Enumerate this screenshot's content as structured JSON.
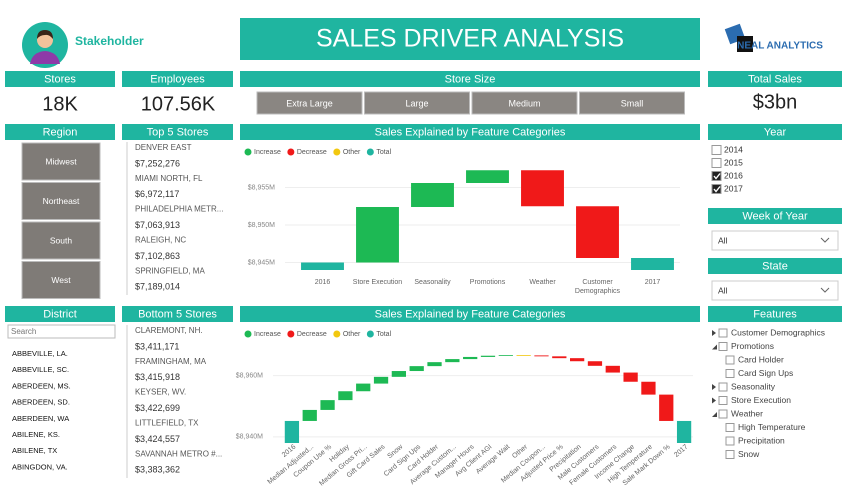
{
  "header": {
    "user": "Stakeholder",
    "title": "SALES DRIVER ANALYSIS",
    "logo": "NEAL ANALYTICS"
  },
  "cards": [
    {
      "label": "Stores",
      "value": "18K"
    },
    {
      "label": "Employees",
      "value": "107.56K"
    },
    {
      "label": "Total Sales",
      "value": "$3bn"
    }
  ],
  "store_size": {
    "label": "Store Size",
    "options": [
      "Extra Large",
      "Large",
      "Medium",
      "Small"
    ]
  },
  "region": {
    "label": "Region",
    "options": [
      "Midwest",
      "Northeast",
      "South",
      "West"
    ]
  },
  "top_stores": {
    "label": "Top 5 Stores",
    "items": [
      {
        "name": "DENVER EAST",
        "sales": "$7,252,276"
      },
      {
        "name": "MIAMI NORTH, FL",
        "sales": "$6,972,117"
      },
      {
        "name": "PHILADELPHIA METR...",
        "sales": "$7,063,913"
      },
      {
        "name": "RALEIGH, NC",
        "sales": "$7,102,863"
      },
      {
        "name": "SPRINGFIELD, MA",
        "sales": "$7,189,014"
      }
    ]
  },
  "bottom_stores": {
    "label": "Bottom 5 Stores",
    "items": [
      {
        "name": "CLAREMONT, NH.",
        "sales": "$3,411,171"
      },
      {
        "name": "FRAMINGHAM, MA",
        "sales": "$3,415,918"
      },
      {
        "name": "KEYSER, WV.",
        "sales": "$3,422,699"
      },
      {
        "name": "LITTLEFIELD, TX",
        "sales": "$3,424,557"
      },
      {
        "name": "SAVANNAH METRO #...",
        "sales": "$3,383,362"
      }
    ]
  },
  "district": {
    "label": "District",
    "search": "Search",
    "items": [
      "ABBEVILLE, LA.",
      "ABBEVILLE, SC.",
      "ABERDEEN, MS.",
      "ABERDEEN, SD.",
      "ABERDEEN, WA",
      "ABILENE, KS.",
      "ABILENE, TX",
      "ABINGDON, VA."
    ]
  },
  "year": {
    "label": "Year",
    "options": [
      {
        "label": "2014",
        "checked": false
      },
      {
        "label": "2015",
        "checked": false
      },
      {
        "label": "2016",
        "checked": true
      },
      {
        "label": "2017",
        "checked": true
      }
    ]
  },
  "week": {
    "label": "Week of Year",
    "value": "All"
  },
  "state": {
    "label": "State",
    "value": "All"
  },
  "features": {
    "label": "Features",
    "items": [
      {
        "label": "Customer Demographics",
        "expanded": false,
        "children": []
      },
      {
        "label": "Promotions",
        "expanded": true,
        "children": [
          "Card Holder",
          "Card Sign Ups"
        ]
      },
      {
        "label": "Seasonality",
        "expanded": false,
        "children": []
      },
      {
        "label": "Store Execution",
        "expanded": false,
        "children": []
      },
      {
        "label": "Weather",
        "expanded": true,
        "children": [
          "High Temperature",
          "Precipitation",
          "Snow"
        ]
      }
    ]
  },
  "chart_data": [
    {
      "type": "waterfall",
      "title": "Sales Explained by Feature Categories",
      "legend": [
        {
          "name": "Increase",
          "color": "#1db954"
        },
        {
          "name": "Decrease",
          "color": "#f01919"
        },
        {
          "name": "Other",
          "color": "#f2c80f"
        },
        {
          "name": "Total",
          "color": "#1fb5a0"
        }
      ],
      "categories": [
        "2016",
        "Store Execution",
        "Seasonality",
        "Promotions",
        "Weather",
        "Customer Demographics",
        "2017"
      ],
      "values": [
        8945.0,
        7.4,
        3.2,
        1.7,
        -4.8,
        -6.9,
        8945.6
      ],
      "colors": [
        "#1fb5a0",
        "#1db954",
        "#1db954",
        "#1db954",
        "#f01919",
        "#f01919",
        "#1fb5a0"
      ],
      "ylim": [
        8944,
        8958
      ],
      "yticks": [
        {
          "value": 8945,
          "label": "$8,945M"
        },
        {
          "value": 8950,
          "label": "$8,950M"
        },
        {
          "value": 8955,
          "label": "$8,955M"
        }
      ]
    },
    {
      "type": "waterfall",
      "title": "Sales Explained by Feature Categories",
      "legend": [
        {
          "name": "Increase",
          "color": "#1db954"
        },
        {
          "name": "Decrease",
          "color": "#f01919"
        },
        {
          "name": "Other",
          "color": "#f2c80f"
        },
        {
          "name": "Total",
          "color": "#1fb5a0"
        }
      ],
      "categories": [
        "2016",
        "Median Adjusted...",
        "Coupon Use %",
        "Holiday",
        "Median Gross Pri...",
        "Gift Card Sales",
        "Snow",
        "Card Sign Ups",
        "Card Holder",
        "Average Custom...",
        "Manager Hours",
        "Avg Client AGI",
        "Average Wait",
        "Other",
        "Median Coupon...",
        "Adjusted Price %",
        "Precipitation",
        "Male Customers",
        "Female Customers",
        "Income Change",
        "High Temperature",
        "Sale Mark Down %",
        "2017"
      ],
      "values": [
        8945.2,
        3.6,
        3.2,
        2.9,
        2.5,
        2.2,
        1.9,
        1.6,
        1.3,
        1.0,
        0.7,
        0.4,
        0.2,
        -0.1,
        -0.3,
        -0.6,
        -1.0,
        -1.5,
        -2.2,
        -3.0,
        -4.2,
        -8.6,
        8945.2
      ],
      "colors": [
        "#1fb5a0",
        "#1db954",
        "#1db954",
        "#1db954",
        "#1db954",
        "#1db954",
        "#1db954",
        "#1db954",
        "#1db954",
        "#1db954",
        "#1db954",
        "#1db954",
        "#1db954",
        "#f2c80f",
        "#f01919",
        "#f01919",
        "#f01919",
        "#f01919",
        "#f01919",
        "#f01919",
        "#f01919",
        "#f01919",
        "#1fb5a0"
      ],
      "ylim": [
        8938,
        8970
      ],
      "yticks": [
        {
          "value": 8940,
          "label": "$8,940M"
        },
        {
          "value": 8960,
          "label": "$8,960M"
        }
      ]
    }
  ]
}
